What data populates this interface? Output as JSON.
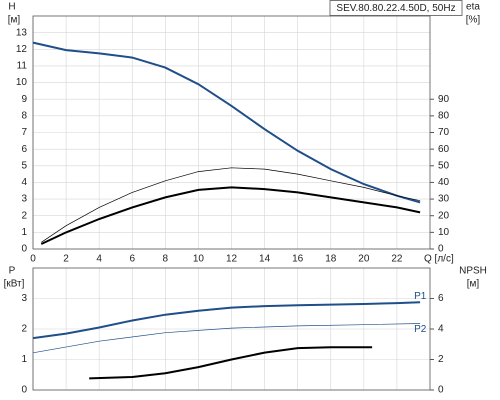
{
  "chart_data": [
    {
      "type": "line",
      "title": "SEV.80.80.22.4.50D, 50Hz",
      "ylabel": "H",
      "yunit": "[м]",
      "y2label": "eta",
      "y2unit": "[%]",
      "xlabel": "Q [л/с]",
      "xlim": [
        0,
        24
      ],
      "xticks": [
        0,
        2,
        4,
        6,
        8,
        10,
        12,
        14,
        16,
        18,
        20,
        22
      ],
      "ylim": [
        0,
        14
      ],
      "yticks": [
        0,
        1,
        2,
        3,
        4,
        5,
        6,
        7,
        8,
        9,
        10,
        11,
        12,
        13
      ],
      "y2lim": [
        0,
        140
      ],
      "y2ticks": [
        0,
        10,
        20,
        30,
        40,
        50,
        60,
        70,
        80,
        90
      ],
      "grid": true,
      "series": [
        {
          "color": "#1f4e89",
          "line_width": 2,
          "x": [
            0,
            2,
            4,
            6,
            8,
            10,
            12,
            14,
            16,
            18,
            20,
            22,
            23.4
          ],
          "values": [
            12.4,
            11.95,
            11.75,
            11.5,
            10.9,
            9.9,
            8.6,
            7.2,
            5.9,
            4.8,
            3.9,
            3.2,
            2.8
          ]
        },
        {
          "color": "#000000",
          "line_width": 0.7,
          "axis": "y2",
          "x": [
            0.5,
            2,
            4,
            6,
            8,
            10,
            12,
            14,
            16,
            18,
            20,
            22,
            23.4
          ],
          "values": [
            4,
            14,
            25,
            34,
            41,
            46.5,
            48.8,
            48,
            45,
            41,
            37,
            32,
            29
          ]
        },
        {
          "color": "#000000",
          "line_width": 2,
          "axis": "y2",
          "x": [
            0.5,
            2,
            4,
            6,
            8,
            10,
            12,
            14,
            16,
            18,
            20,
            22,
            23.4
          ],
          "values": [
            3,
            10,
            18,
            25,
            31,
            35.5,
            37,
            36,
            34,
            31,
            28,
            25,
            22
          ]
        }
      ]
    },
    {
      "type": "line",
      "ylabel": "P",
      "yunit": "[кВт]",
      "y2label": "NPSH",
      "y2unit": "[м]",
      "xlim": [
        0,
        24
      ],
      "xticks": [
        0,
        2,
        4,
        6,
        8,
        10,
        12,
        14,
        16,
        18,
        20,
        22
      ],
      "ylim": [
        0,
        4
      ],
      "yticks": [
        0,
        1,
        2,
        3
      ],
      "y2lim": [
        0,
        8
      ],
      "y2ticks": [
        0,
        2,
        4,
        6
      ],
      "grid": true,
      "series": [
        {
          "name": "P1",
          "color": "#1f4e89",
          "line_width": 2,
          "x": [
            0,
            2,
            4,
            6,
            8,
            10,
            12,
            14,
            16,
            18,
            20,
            22,
            23.4
          ],
          "values": [
            1.7,
            1.85,
            2.05,
            2.28,
            2.47,
            2.6,
            2.7,
            2.75,
            2.78,
            2.8,
            2.82,
            2.85,
            2.88
          ]
        },
        {
          "name": "P2",
          "color": "#1f4e89",
          "line_width": 0.7,
          "x": [
            0,
            4,
            8,
            12,
            16,
            20,
            23.4
          ],
          "values": [
            1.22,
            1.6,
            1.88,
            2.03,
            2.1,
            2.14,
            2.18
          ]
        },
        {
          "color": "#000000",
          "line_width": 2,
          "axis": "y2",
          "x": [
            3.4,
            6,
            8,
            10,
            12,
            14,
            16,
            18,
            20.5
          ],
          "values": [
            0.76,
            0.85,
            1.1,
            1.5,
            2.0,
            2.45,
            2.75,
            2.8,
            2.8
          ]
        }
      ]
    }
  ]
}
